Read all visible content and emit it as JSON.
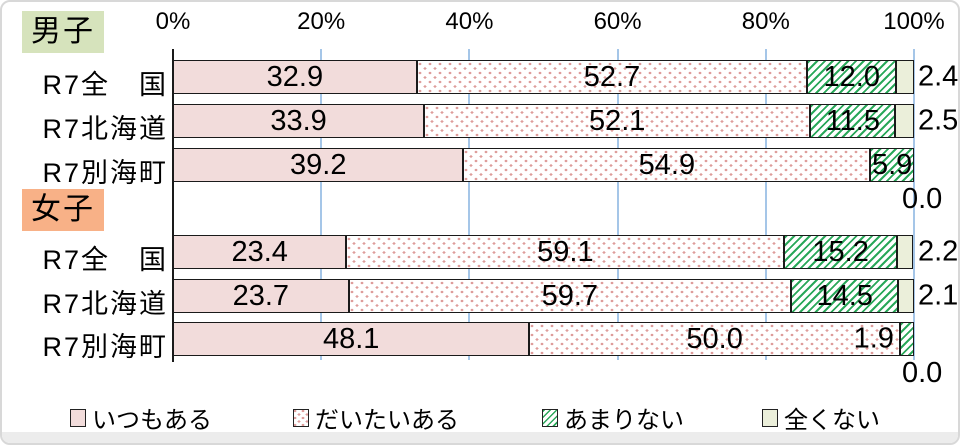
{
  "chart_data": {
    "type": "bar",
    "orientation": "horizontal",
    "stacked": true,
    "unit": "%",
    "xlim": [
      0,
      100
    ],
    "x_ticks": [
      "0%",
      "20%",
      "40%",
      "60%",
      "80%",
      "100%"
    ],
    "legend_position": "bottom",
    "series": [
      "いつもある",
      "だいたいある",
      "あまりない",
      "全くない"
    ],
    "series_keys": [
      "always",
      "mostly",
      "rarely",
      "never"
    ],
    "groups": [
      {
        "group": "男子",
        "rows": [
          {
            "category": "R7全　国",
            "values": [
              32.9,
              52.7,
              12.0,
              2.4
            ],
            "label_layout": [
              "in",
              "in",
              "in",
              "right"
            ]
          },
          {
            "category": "R7北海道",
            "values": [
              33.9,
              52.1,
              11.5,
              2.5
            ],
            "label_layout": [
              "in",
              "in",
              "in",
              "right"
            ]
          },
          {
            "category": "R7別海町",
            "values": [
              39.2,
              54.9,
              5.9,
              0.0
            ],
            "label_layout": [
              "in",
              "in",
              "in",
              "below"
            ]
          }
        ]
      },
      {
        "group": "女子",
        "rows": [
          {
            "category": "R7全　国",
            "values": [
              23.4,
              59.1,
              15.2,
              2.2
            ],
            "label_layout": [
              "in",
              "in",
              "in",
              "right"
            ]
          },
          {
            "category": "R7北海道",
            "values": [
              23.7,
              59.7,
              14.5,
              2.1
            ],
            "label_layout": [
              "in",
              "in",
              "in",
              "right"
            ]
          },
          {
            "category": "R7別海町",
            "values": [
              48.1,
              50.0,
              1.9,
              0.0
            ],
            "label_layout": [
              "in",
              "in",
              "left-out",
              "below"
            ]
          }
        ]
      }
    ]
  },
  "colors": {
    "pink_fill": "#f2dcdb",
    "dot_color": "#de9d9b",
    "hatch_green": "#2aa85a",
    "cream_fill": "#ebefda",
    "boys_bg": "#d6e3bc",
    "girls_bg": "#f8b187",
    "gridline_blue": "#a5c6e8",
    "outer_border": "#d8d8d8",
    "footer_grey": "#ececec"
  }
}
